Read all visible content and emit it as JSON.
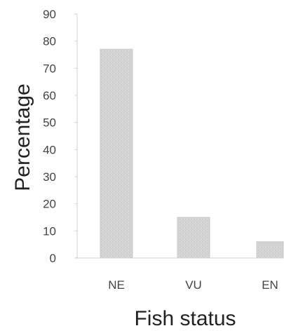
{
  "chart_data": {
    "type": "bar",
    "categories": [
      "NE",
      "VU",
      "EN"
    ],
    "values": [
      77,
      15,
      6
    ],
    "xlabel": "Fish status",
    "ylabel": "Percentage",
    "ylim": [
      0,
      90
    ],
    "yticks": [
      0,
      10,
      20,
      30,
      40,
      50,
      60,
      70,
      80,
      90
    ],
    "grid": false,
    "legend": "none",
    "bar_color": "#cfcfcf"
  }
}
